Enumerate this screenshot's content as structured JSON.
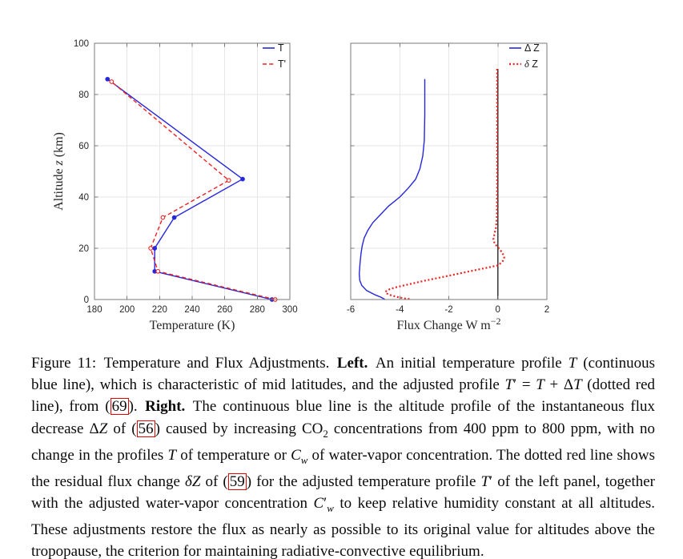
{
  "page": {
    "background": "#ffffff"
  },
  "colors": {
    "line_blue": "#2626dd",
    "line_red": "#ee2222",
    "zero_line": "#3d3d3d",
    "grid": "#e6e6e6",
    "axis_box": "#7a7a7a",
    "tick_text": "#262626",
    "ref_box": "#e60000"
  },
  "chart_data": [
    {
      "id": "left",
      "type": "line",
      "xlabel": [
        {
          "t": "Temperature (K)"
        }
      ],
      "ylabel": [
        {
          "t": "Altitude "
        },
        {
          "t": "z",
          "s": "i"
        },
        {
          "t": " (km)"
        }
      ],
      "xlim": [
        180,
        300
      ],
      "ylim": [
        0,
        100
      ],
      "xticks": [
        180,
        200,
        220,
        240,
        260,
        280,
        300
      ],
      "yticks": [
        0,
        20,
        40,
        60,
        80,
        100
      ],
      "ytick_labels": true,
      "grid": true,
      "legend_position": "top-right",
      "series": [
        {
          "name": [
            {
              "t": "T"
            }
          ],
          "color": "#2626dd",
          "style": "solid",
          "width": 1.4,
          "marker": "filled",
          "points": [
            [
              289,
              0
            ],
            [
              217,
              11
            ],
            [
              217,
              20
            ],
            [
              229,
              32
            ],
            [
              271,
              47
            ],
            [
              188,
              86
            ]
          ]
        },
        {
          "name": [
            {
              "t": "T'"
            }
          ],
          "color": "#ee2222",
          "style": "dashed",
          "width": 1.4,
          "marker": "open",
          "points": [
            [
              291,
              0
            ],
            [
              219,
              11
            ],
            [
              214.5,
              20
            ],
            [
              222,
              32
            ],
            [
              262.5,
              46.5
            ],
            [
              190.5,
              85
            ]
          ]
        }
      ]
    },
    {
      "id": "right",
      "type": "line",
      "xlabel": [
        {
          "t": "Flux Change W m"
        },
        {
          "t": "−2",
          "s": "sup"
        }
      ],
      "ylabel": null,
      "xlim": [
        -6,
        2
      ],
      "ylim": [
        0,
        100
      ],
      "xticks": [
        -6,
        -4,
        -2,
        0,
        2
      ],
      "yticks": [
        0,
        20,
        40,
        60,
        80,
        100
      ],
      "ytick_labels": false,
      "grid": true,
      "legend_position": "top-right",
      "zero_line": {
        "x": 0,
        "z_from": 0,
        "z_to": 90,
        "color": "#3d3d3d",
        "width": 1.6
      },
      "series": [
        {
          "name": [
            {
              "t": "Δ Z"
            }
          ],
          "color": "#2626dd",
          "style": "solid",
          "width": 1.4,
          "marker": null,
          "points": [
            [
              -2.98,
              86
            ],
            [
              -2.98,
              72
            ],
            [
              -3.0,
              62
            ],
            [
              -3.06,
              56
            ],
            [
              -3.18,
              51
            ],
            [
              -3.35,
              47
            ],
            [
              -3.65,
              43.5
            ],
            [
              -4.0,
              40
            ],
            [
              -4.45,
              36.5
            ],
            [
              -4.8,
              33
            ],
            [
              -5.1,
              30
            ],
            [
              -5.3,
              27
            ],
            [
              -5.45,
              24
            ],
            [
              -5.53,
              21
            ],
            [
              -5.58,
              18
            ],
            [
              -5.62,
              14
            ],
            [
              -5.65,
              10
            ],
            [
              -5.63,
              7.5
            ],
            [
              -5.55,
              5.5
            ],
            [
              -5.35,
              3.5
            ],
            [
              -5.0,
              1.8
            ],
            [
              -4.75,
              0.8
            ],
            [
              -4.6,
              0
            ]
          ]
        },
        {
          "name": [
            {
              "t": "δ",
              "s": "i"
            },
            {
              "t": " Z"
            }
          ],
          "color": "#ee2222",
          "style": "dotted",
          "width": 2.2,
          "marker": null,
          "points": [
            [
              -0.03,
              90
            ],
            [
              -0.03,
              45
            ],
            [
              -0.04,
              32
            ],
            [
              -0.08,
              28
            ],
            [
              -0.14,
              25.5
            ],
            [
              -0.18,
              23.5
            ],
            [
              -0.13,
              21.8
            ],
            [
              0.0,
              20.4
            ],
            [
              0.14,
              18.8
            ],
            [
              0.24,
              17.2
            ],
            [
              0.26,
              16.3
            ],
            [
              0.2,
              15
            ],
            [
              0.08,
              13.9
            ],
            [
              0.0,
              13.3
            ],
            [
              -0.6,
              12.1
            ],
            [
              -1.2,
              10.9
            ],
            [
              -1.8,
              9.7
            ],
            [
              -2.4,
              8.5
            ],
            [
              -3.0,
              7.3
            ],
            [
              -3.6,
              6.0
            ],
            [
              -4.1,
              4.9
            ],
            [
              -4.4,
              4.1
            ],
            [
              -4.55,
              3.3
            ],
            [
              -4.58,
              2.7
            ],
            [
              -4.45,
              1.9
            ],
            [
              -4.15,
              1.1
            ],
            [
              -3.85,
              0.5
            ],
            [
              -3.6,
              0.2
            ]
          ]
        }
      ]
    }
  ],
  "caption": {
    "segments": [
      {
        "t": "Figure 11: Temperature and Flux Adjustments. "
      },
      {
        "t": "Left.",
        "s": "b"
      },
      {
        "t": " An initial temperature profile "
      },
      {
        "t": "T",
        "s": "i"
      },
      {
        "t": " (continuous blue line), which is characteristic of mid latitudes, and the adjusted profile "
      },
      {
        "t": "T",
        "s": "i"
      },
      {
        "t": "′ = "
      },
      {
        "t": "T",
        "s": "i"
      },
      {
        "t": " + Δ"
      },
      {
        "t": "T",
        "s": "i"
      },
      {
        "t": " (dotted red line), from ("
      },
      {
        "t": "69",
        "s": "ref"
      },
      {
        "t": "). "
      },
      {
        "t": "Right.",
        "s": "b"
      },
      {
        "t": " The continuous blue line is the altitude profile of the instantaneous flux decrease Δ"
      },
      {
        "t": "Z",
        "s": "i"
      },
      {
        "t": " of ("
      },
      {
        "t": "56",
        "s": "ref"
      },
      {
        "t": ") caused by increasing CO"
      },
      {
        "t": "2",
        "s": "sub"
      },
      {
        "t": " concentrations from 400 ppm to 800 ppm, with no change in the profiles "
      },
      {
        "t": "T",
        "s": "i"
      },
      {
        "t": " of temperature or "
      },
      {
        "t": "C",
        "s": "i"
      },
      {
        "t": "w",
        "s": "subi"
      },
      {
        "t": " of water-vapor concentration. The dotted red line shows the residual flux change "
      },
      {
        "t": "δZ",
        "s": "i"
      },
      {
        "t": " of ("
      },
      {
        "t": "59",
        "s": "ref"
      },
      {
        "t": ") for the adjusted temperature profile "
      },
      {
        "t": "T",
        "s": "i"
      },
      {
        "t": "′ of the left panel, together with the adjusted water-vapor concentration "
      },
      {
        "t": "C",
        "s": "i"
      },
      {
        "t": "′"
      },
      {
        "t": "w",
        "s": "subi"
      },
      {
        "t": " to keep relative humidity constant at all altitudes. These adjustments restore the flux as nearly as possible to its original value for altitudes above the tropopause, the criterion for maintaining radiative-convective equilibrium."
      }
    ]
  }
}
